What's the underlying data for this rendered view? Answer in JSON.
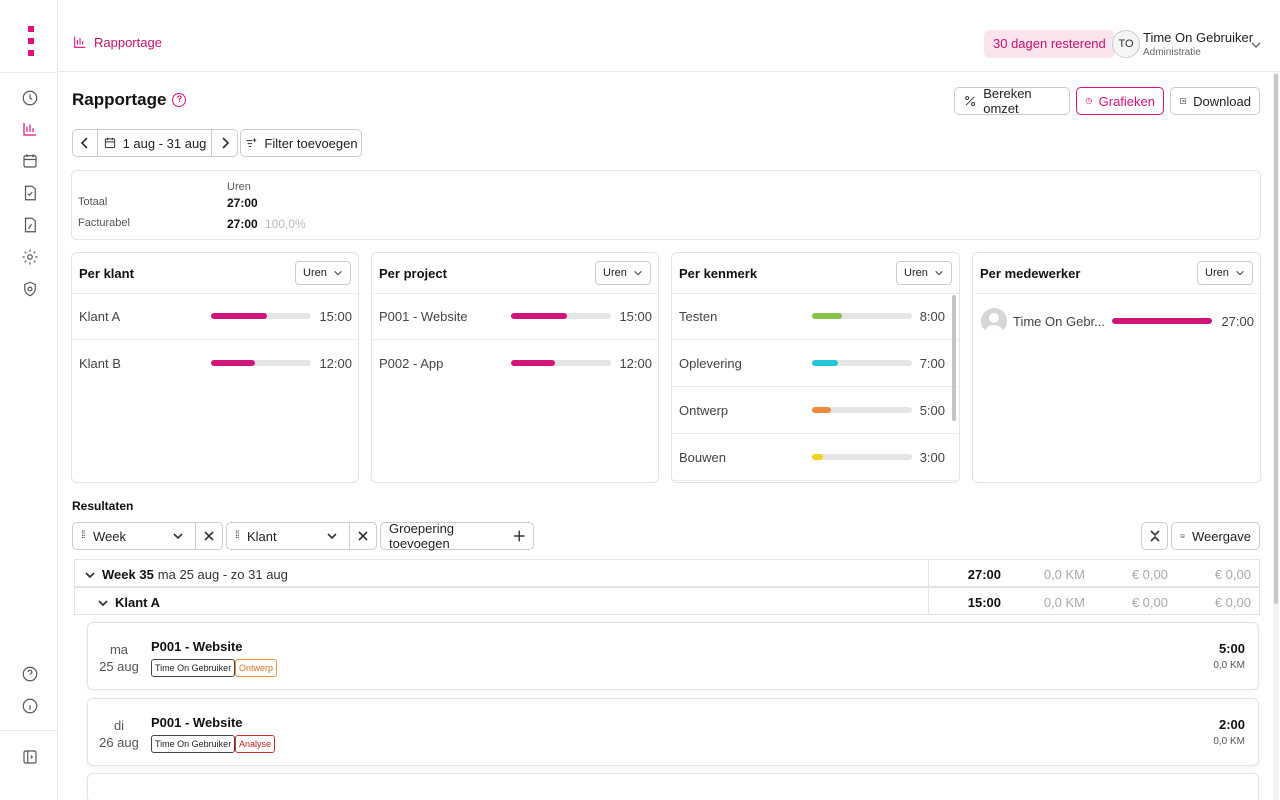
{
  "topbar": {
    "breadcrumb": "Rapportage",
    "trial_badge": "30 dagen resterend",
    "user_initials": "TO",
    "user_name": "Time On Gebruiker",
    "user_role": "Administratie"
  },
  "header": {
    "title": "Rapportage",
    "btn_omzet": "Bereken omzet",
    "btn_grafieken": "Grafieken",
    "btn_download": "Download"
  },
  "datebar": {
    "range": "1 aug - 31 aug",
    "filter": "Filter toevoegen"
  },
  "totals": {
    "col_header": "Uren",
    "rows": [
      {
        "label": "Totaal",
        "value": "27:00",
        "pct": ""
      },
      {
        "label": "Facturabel",
        "value": "27:00",
        "pct": "100,0%"
      }
    ]
  },
  "panels": [
    {
      "title": "Per klant",
      "select": "Uren",
      "rows": [
        {
          "label": "Klant A",
          "value": "15:00",
          "fraction": 0.56,
          "color": "#d0147a"
        },
        {
          "label": "Klant B",
          "value": "12:00",
          "fraction": 0.44,
          "color": "#d0147a"
        }
      ]
    },
    {
      "title": "Per project",
      "select": "Uren",
      "rows": [
        {
          "label": "P001 - Website",
          "value": "15:00",
          "fraction": 0.56,
          "color": "#d0147a"
        },
        {
          "label": "P002 - App",
          "value": "12:00",
          "fraction": 0.44,
          "color": "#d0147a"
        }
      ]
    },
    {
      "title": "Per kenmerk",
      "select": "Uren",
      "rows": [
        {
          "label": "Testen",
          "value": "8:00",
          "fraction": 0.3,
          "color": "#8bc34a"
        },
        {
          "label": "Oplevering",
          "value": "7:00",
          "fraction": 0.26,
          "color": "#26c6da"
        },
        {
          "label": "Ontwerp",
          "value": "5:00",
          "fraction": 0.19,
          "color": "#f0883e"
        },
        {
          "label": "Bouwen",
          "value": "3:00",
          "fraction": 0.11,
          "color": "#f2d21b"
        }
      ]
    },
    {
      "title": "Per medewerker",
      "select": "Uren",
      "rows": [
        {
          "label": "Time On Gebr...",
          "value": "27:00",
          "fraction": 1.0,
          "color": "#d0147a"
        }
      ]
    }
  ],
  "results": {
    "title": "Resultaten",
    "group1": "Week",
    "group2": "Klant",
    "add_group": "Groepering toevoegen",
    "weergave": "Weergave",
    "week_row": {
      "label": "Week 35",
      "sub": "ma 25 aug - zo 31 aug",
      "hours": "27:00",
      "km": "0,0 KM",
      "amt1": "€ 0,00",
      "amt2": "€ 0,00"
    },
    "client_row": {
      "label": "Klant A",
      "hours": "15:00",
      "km": "0,0 KM",
      "amt1": "€ 0,00",
      "amt2": "€ 0,00"
    },
    "entries": [
      {
        "day": "ma",
        "date": "25 aug",
        "project": "P001 - Website",
        "user": "Time On Gebruiker",
        "tag": "Ontwerp",
        "hours": "5:00",
        "km": "0,0 KM"
      },
      {
        "day": "di",
        "date": "26 aug",
        "project": "P001 - Website",
        "user": "Time On Gebruiker",
        "tag": "Analyse",
        "hours": "2:00",
        "km": "0,0 KM"
      }
    ]
  },
  "colors": {
    "accent": "#e0107f",
    "accent_bg": "#fce4ef"
  }
}
